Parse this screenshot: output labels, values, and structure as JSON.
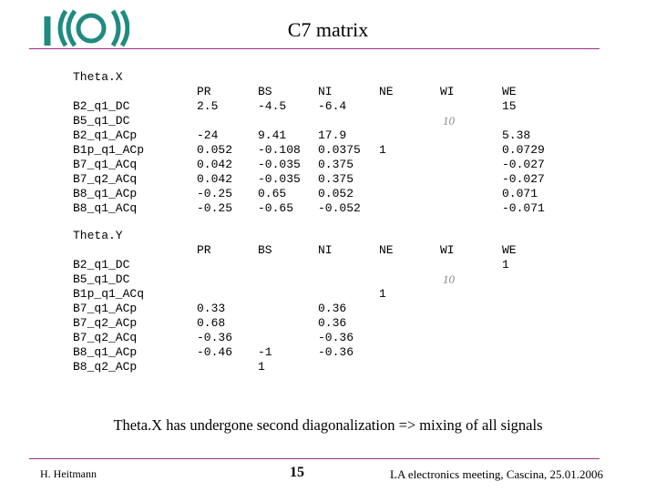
{
  "slide": {
    "title": "C7 matrix",
    "note": "Theta.X has undergone second diagonalization => mixing of all signals",
    "footer": {
      "author": "H. Heitmann",
      "page": "15",
      "conference": "LA electronics meeting, Cascina, 25.01.2006"
    }
  },
  "theta_x": {
    "label": "Theta.X",
    "headers": [
      "PR",
      "BS",
      "NI",
      "NE",
      "WI",
      "WE"
    ],
    "header_values": [
      "2.5",
      "-4.5",
      "-6.4",
      "",
      "",
      "15"
    ],
    "wi_note": "10",
    "rows": [
      "B2_q1_DC",
      "B5_q1_DC",
      "B2_q1_ACp",
      "B1p_q1_ACp",
      "B7_q1_ACq",
      "B7_q2_ACq",
      "B8_q1_ACp",
      "B8_q1_ACq"
    ],
    "pr": [
      "-24",
      "0.052",
      "0.042",
      "0.042",
      "-0.25",
      "-0.25"
    ],
    "bs": [
      "9.41",
      "-0.108",
      "-0.035",
      "-0.035",
      "0.65",
      "-0.65"
    ],
    "ni": [
      "17.9",
      "0.0375",
      "0.375",
      "0.375",
      "0.052",
      "-0.052"
    ],
    "ne": "1",
    "we": [
      "5.38",
      "0.0729",
      "-0.027",
      "-0.027",
      "0.071",
      "-0.071"
    ]
  },
  "theta_y": {
    "label": "Theta.Y",
    "headers": [
      "PR",
      "BS",
      "NI",
      "NE",
      "WI",
      "WE"
    ],
    "we_value": "1",
    "wi_note": "10",
    "rows": [
      "B2_q1_DC",
      "B5_q1_DC",
      "B1p_q1_ACq",
      "B7_q1_ACp",
      "B7_q2_ACp",
      "B7_q2_ACq",
      "B8_q1_ACp",
      "B8_q2_ACp"
    ],
    "ne": "1",
    "pr": [
      "0.33",
      "0.68",
      "-0.36",
      "-0.46"
    ],
    "bs": [
      "-1",
      "1"
    ],
    "ni": [
      "0.36",
      "0.36",
      "-0.36",
      "-0.36"
    ]
  }
}
